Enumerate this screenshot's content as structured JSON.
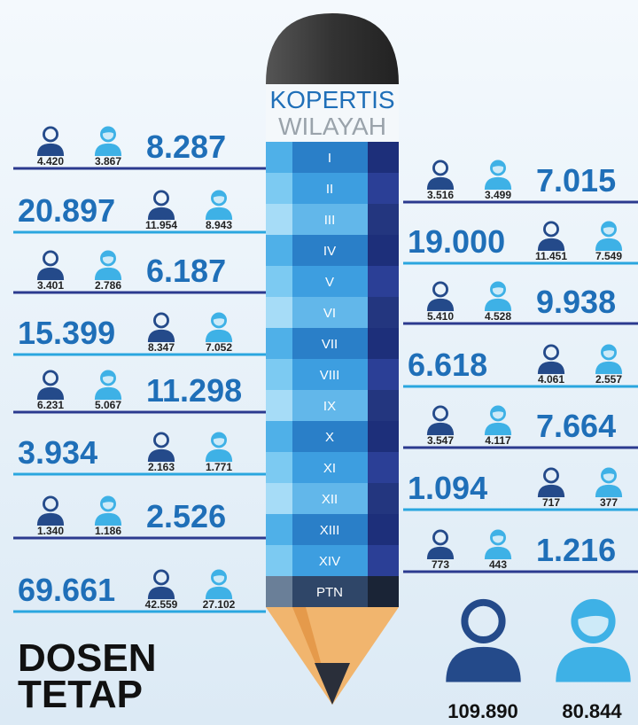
{
  "header": {
    "line1": "KOPERTIS",
    "line2": "WILAYAH"
  },
  "regions": [
    "I",
    "II",
    "III",
    "IV",
    "V",
    "VI",
    "VII",
    "VIII",
    "IX",
    "X",
    "XI",
    "XII",
    "XIII",
    "XIV",
    "PTN"
  ],
  "left": [
    {
      "total": "8.287",
      "male": "4.420",
      "female": "3.867"
    },
    {
      "total": "20.897",
      "male": "11.954",
      "female": "8.943"
    },
    {
      "total": "6.187",
      "male": "3.401",
      "female": "2.786"
    },
    {
      "total": "15.399",
      "male": "8.347",
      "female": "7.052"
    },
    {
      "total": "11.298",
      "male": "6.231",
      "female": "5.067"
    },
    {
      "total": "3.934",
      "male": "2.163",
      "female": "1.771"
    },
    {
      "total": "2.526",
      "male": "1.340",
      "female": "1.186"
    },
    {
      "total": "69.661",
      "male": "42.559",
      "female": "27.102"
    }
  ],
  "right": [
    {
      "total": "7.015",
      "male": "3.516",
      "female": "3.499"
    },
    {
      "total": "19.000",
      "male": "11.451",
      "female": "7.549"
    },
    {
      "total": "9.938",
      "male": "5.410",
      "female": "4.528"
    },
    {
      "total": "6.618",
      "male": "4.061",
      "female": "2.557"
    },
    {
      "total": "7.664",
      "male": "3.547",
      "female": "4.117"
    },
    {
      "total": "1.094",
      "male": "717",
      "female": "377"
    },
    {
      "total": "1.216",
      "male": "773",
      "female": "443"
    }
  ],
  "summary": {
    "male": "109.890",
    "female": "80.844"
  },
  "title": {
    "line1": "DOSEN",
    "line2": "TETAP"
  }
}
